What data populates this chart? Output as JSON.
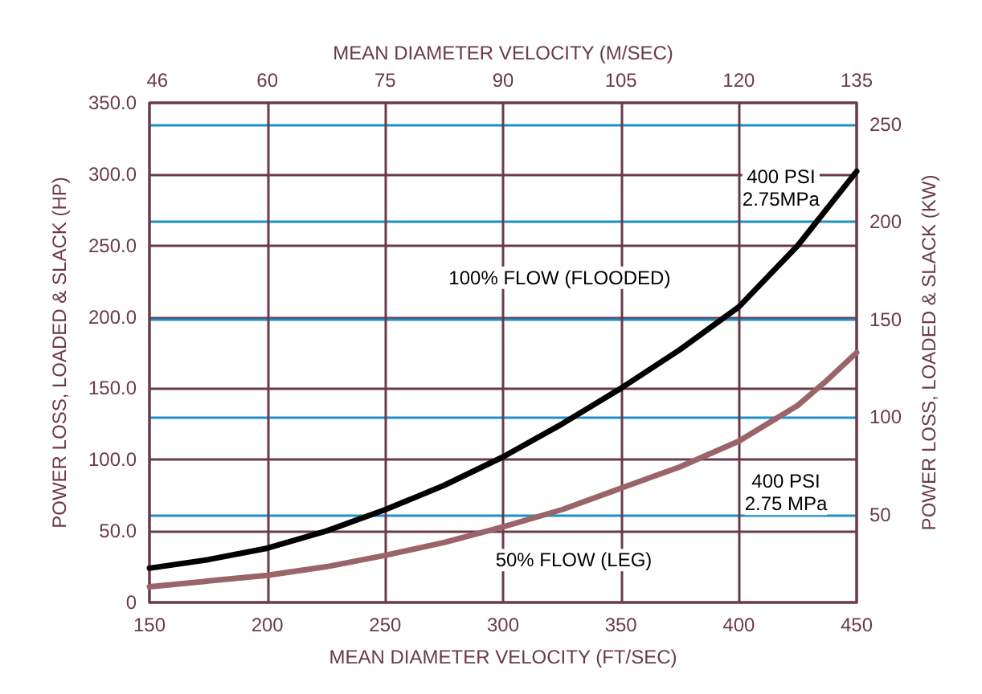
{
  "chart_data": {
    "type": "line",
    "xlabel": "MEAN DIAMETER VELOCITY (FT/SEC)",
    "x2label": "MEAN DIAMETER VELOCITY (M/SEC)",
    "ylabel": "POWER LOSS, LOADED & SLACK (HP)",
    "y2label": "POWER LOSS, LOADED & SLACK (KW)",
    "x": [
      150,
      175,
      200,
      225,
      250,
      275,
      300,
      325,
      350,
      375,
      400,
      425,
      437,
      450
    ],
    "series": [
      {
        "color": "#000000",
        "values": [
          24,
          30,
          38,
          50,
          65,
          82,
          102,
          125,
          150,
          177,
          207,
          250,
          275,
          302
        ]
      },
      {
        "color": "#9a6469",
        "values": [
          11,
          15,
          19,
          25,
          33,
          42,
          53,
          65,
          80,
          95,
          113,
          138,
          155,
          175
        ]
      }
    ],
    "xlim": [
      150,
      450
    ],
    "xticks": [
      150,
      200,
      250,
      300,
      350,
      400,
      450
    ],
    "x2lim": [
      45,
      135
    ],
    "x2ticks": [
      46,
      60,
      75,
      90,
      105,
      120,
      135
    ],
    "ylim": [
      0,
      350
    ],
    "yticks": [
      0,
      {
        "value": 50,
        "label": "50.0"
      },
      {
        "value": 100,
        "label": "100.0"
      },
      {
        "value": 150,
        "label": "150.0"
      },
      {
        "value": 200,
        "label": "200.0"
      },
      {
        "value": 250,
        "label": "250.0"
      },
      {
        "value": 300,
        "label": "300.0"
      },
      {
        "value": 350,
        "label": "350.0"
      }
    ],
    "y2lim": [
      5,
      261
    ],
    "y2ticks": [
      50,
      100,
      150,
      200,
      250
    ],
    "grid": true,
    "line_style": "solid",
    "marker": "none",
    "annotations": [
      "400 PSI\n2.75MPa",
      "100% FLOW (FLOODED)",
      "400 PSI\n2.75 MPa",
      "50% FLOW (LEG)"
    ]
  }
}
